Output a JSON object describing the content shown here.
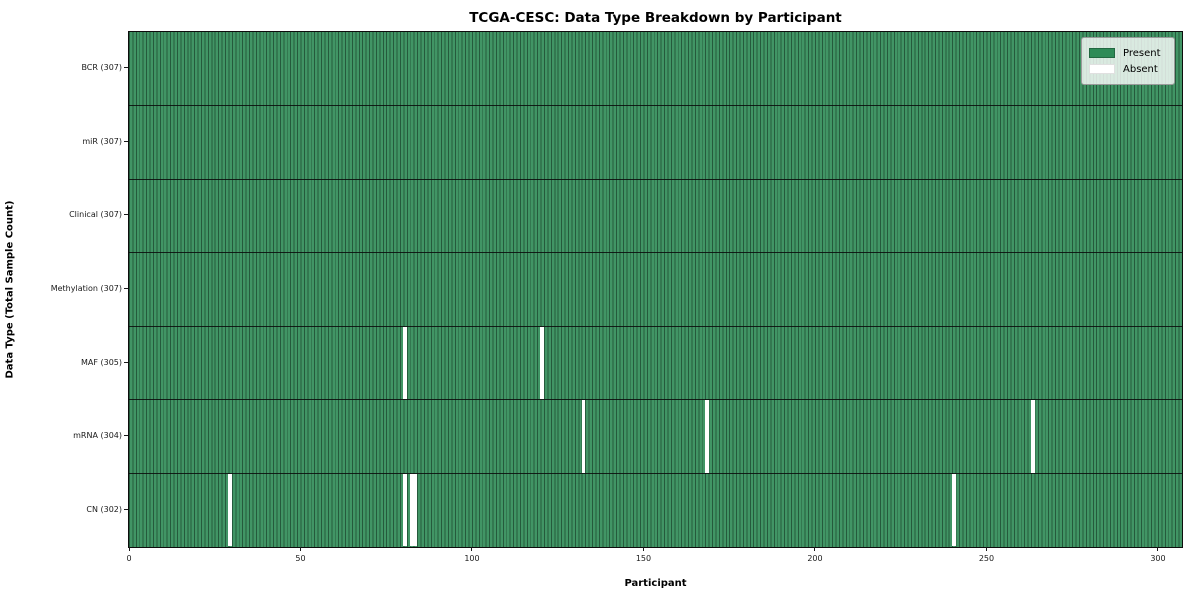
{
  "chart_data": {
    "type": "heatmap",
    "title": "TCGA-CESC: Data Type Breakdown by Participant",
    "xlabel": "Participant",
    "ylabel": "Data Type (Total Sample Count)",
    "n_participants": 307,
    "xlim": [
      0,
      307
    ],
    "x_ticks": [
      0,
      50,
      100,
      150,
      200,
      250,
      300
    ],
    "grid": false,
    "legend_position": "upper right",
    "legend": [
      {
        "label": "Present",
        "color": "#2e8b57"
      },
      {
        "label": "Absent",
        "color": "#ffffff"
      }
    ],
    "rows": [
      {
        "label": "BCR (307)",
        "total": 307,
        "absent": []
      },
      {
        "label": "miR (307)",
        "total": 307,
        "absent": []
      },
      {
        "label": "Clinical (307)",
        "total": 307,
        "absent": []
      },
      {
        "label": "Methylation (307)",
        "total": 307,
        "absent": []
      },
      {
        "label": "MAF (305)",
        "total": 305,
        "absent": [
          80,
          120
        ]
      },
      {
        "label": "mRNA (304)",
        "total": 304,
        "absent": [
          132,
          168,
          263
        ]
      },
      {
        "label": "CN (302)",
        "total": 302,
        "absent": [
          29,
          80,
          82,
          83,
          240
        ]
      }
    ],
    "colors": {
      "present_fill": "#2e8b57",
      "cell_edge": "rgba(0,0,0,0.38)",
      "row_divider": "#0d0d0d",
      "absent_fill": "#ffffff",
      "background": "#ffffff"
    }
  }
}
